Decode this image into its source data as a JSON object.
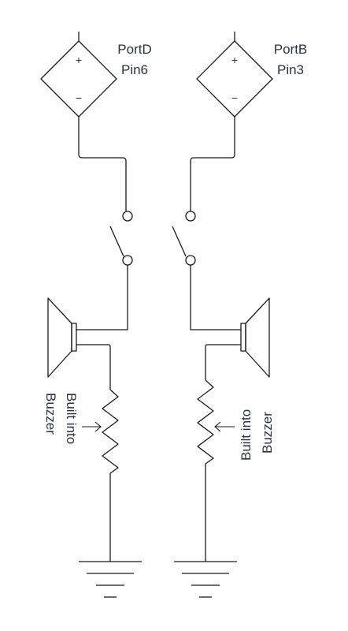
{
  "left_source": {
    "label_line1": "PortD",
    "label_line2": "Pin6",
    "plus": "+",
    "minus": "−"
  },
  "right_source": {
    "label_line1": "PortB",
    "label_line2": "Pin3",
    "plus": "+",
    "minus": "−"
  },
  "left_resistor": {
    "label_line1": "Built into",
    "label_line2": "Buzzer"
  },
  "right_resistor": {
    "label_line1": "Built into",
    "label_line2": "Buzzer"
  },
  "colors": {
    "line": "#1a1a1a",
    "text": "#2a3340",
    "background": "#ffffff"
  }
}
